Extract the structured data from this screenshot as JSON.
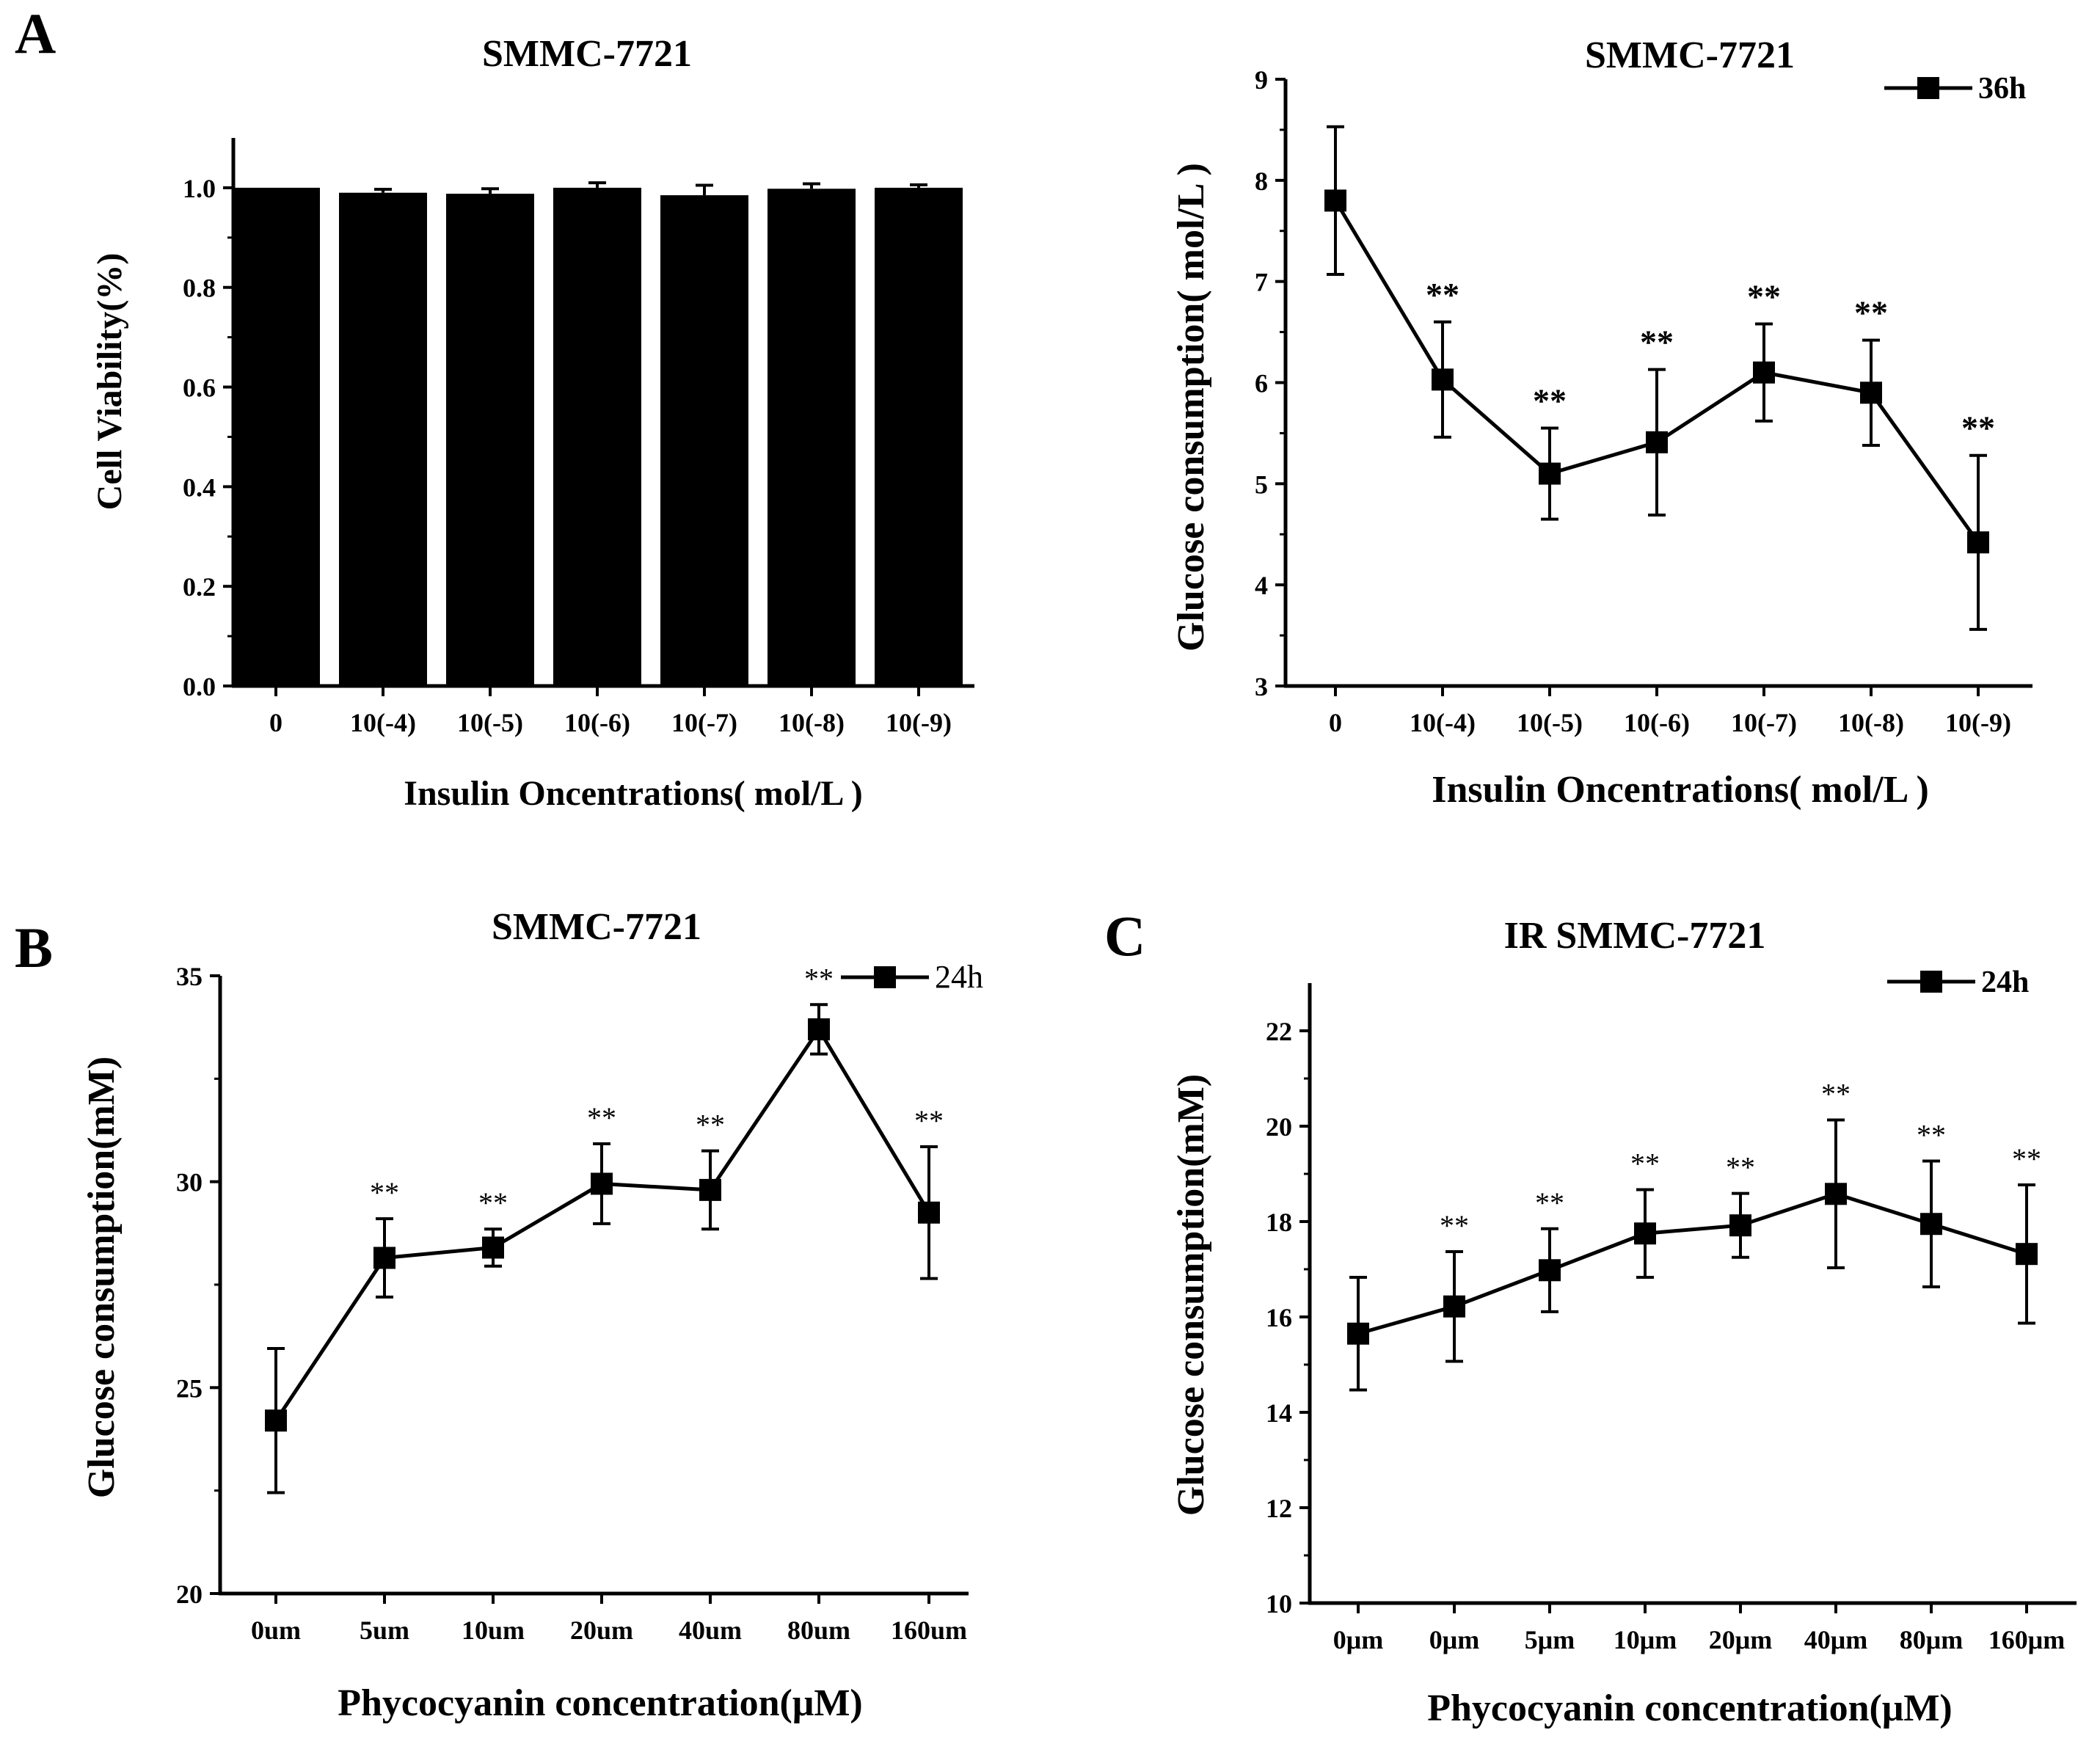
{
  "panel_labels": [
    "A",
    "B",
    "C"
  ],
  "chart_data": [
    {
      "id": "A1",
      "type": "bar",
      "title": "SMMC-7721",
      "xlabel": "Insulin Oncentrations( mol/L )",
      "ylabel": "Cell Viability(%)",
      "categories": [
        "0",
        "10(-4)",
        "10(-5)",
        "10(-6)",
        "10(-7)",
        "10(-8)",
        "10(-9)"
      ],
      "values": [
        1.0,
        0.99,
        0.988,
        1.0,
        0.985,
        0.998,
        1.0
      ],
      "errors": [
        0.0,
        0.007,
        0.01,
        0.01,
        0.02,
        0.01,
        0.006
      ],
      "ylim": [
        0,
        1.1
      ],
      "yticks": [
        "0.0",
        "0.2",
        "0.4",
        "0.6",
        "0.8",
        "1.0"
      ],
      "bar_color": "#000000"
    },
    {
      "id": "A2",
      "type": "line",
      "title": "SMMC-7721",
      "xlabel": "Insulin Oncentrations( mol/L )",
      "ylabel": "Glucose consumption( mol/L )",
      "categories": [
        "0",
        "10(-4)",
        "10(-5)",
        "10(-6)",
        "10(-7)",
        "10(-8)",
        "10(-9)"
      ],
      "series": [
        {
          "name": "36h",
          "values": [
            7.8,
            6.03,
            5.1,
            5.41,
            6.1,
            5.9,
            4.42
          ],
          "errors": [
            0.73,
            0.57,
            0.45,
            0.72,
            0.48,
            0.52,
            0.86
          ]
        }
      ],
      "annotations": [
        "",
        "**",
        "**",
        "**",
        "**",
        "**",
        "**"
      ],
      "ylim": [
        3,
        9
      ],
      "yticks": [
        "3",
        "4",
        "5",
        "6",
        "7",
        "8",
        "9"
      ],
      "legend": "36h",
      "legend_position": "top-right"
    },
    {
      "id": "B",
      "type": "line",
      "title": "SMMC-7721",
      "xlabel": "Phycocyanin concentration(μM)",
      "ylabel": "Glucose consumption(mM)",
      "categories": [
        "0um",
        "5um",
        "10um",
        "20um",
        "40um",
        "80um",
        "160um"
      ],
      "series": [
        {
          "name": "24h",
          "values": [
            24.2,
            28.15,
            28.4,
            29.95,
            29.8,
            33.7,
            29.25
          ],
          "errors": [
            1.75,
            0.95,
            0.45,
            0.97,
            0.95,
            0.6,
            1.6
          ]
        }
      ],
      "annotations": [
        "",
        "**",
        "**",
        "**",
        "**",
        "**",
        "**"
      ],
      "ylim": [
        20,
        35
      ],
      "yticks": [
        "20",
        "25",
        "30",
        "35"
      ],
      "legend": "24h",
      "legend_position": "top-right"
    },
    {
      "id": "C",
      "type": "line",
      "title": "IR SMMC-7721",
      "xlabel": "Phycocyanin concentration(μM)",
      "ylabel": "Glucose consumption(mM)",
      "categories": [
        "0μm",
        "0μm",
        "5μm",
        "10μm",
        "20μm",
        "40μm",
        "80μm",
        "160μm"
      ],
      "series": [
        {
          "name": "24h",
          "values": [
            15.65,
            16.22,
            16.98,
            17.75,
            17.92,
            18.58,
            17.95,
            17.32
          ],
          "errors": [
            1.18,
            1.15,
            0.87,
            0.92,
            0.67,
            1.55,
            1.32,
            1.45
          ]
        }
      ],
      "annotations": [
        "",
        "**",
        "**",
        "**",
        "**",
        "**",
        "**",
        "**"
      ],
      "ylim": [
        10,
        23
      ],
      "yticks": [
        "10",
        "12",
        "14",
        "16",
        "18",
        "20",
        "22"
      ],
      "legend": "24h",
      "legend_position": "top-right"
    }
  ]
}
